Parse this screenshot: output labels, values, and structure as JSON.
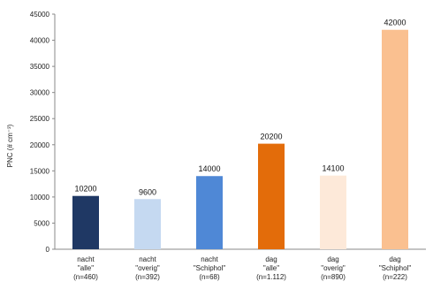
{
  "chart_data": {
    "type": "bar",
    "ylabel": "PNC (# cm⁻³)",
    "ylim": [
      0,
      45000
    ],
    "yticks": [
      0,
      5000,
      10000,
      15000,
      20000,
      25000,
      30000,
      35000,
      40000,
      45000
    ],
    "grid": false,
    "categories": [
      [
        "nacht",
        "\"alle\"",
        "(n=460)"
      ],
      [
        "nacht",
        "\"overig\"",
        "(n=392)"
      ],
      [
        "nacht",
        "\"Schiphol\"",
        "(n=68)"
      ],
      [
        "dag",
        "\"alle\"",
        "(n=1.112)"
      ],
      [
        "dag",
        "\"overig\"",
        "(n=890)"
      ],
      [
        "dag",
        "\"Schiphol\"",
        "(n=222)"
      ]
    ],
    "values": [
      10200,
      9600,
      14000,
      20200,
      14100,
      42000
    ],
    "data_labels": [
      "10200",
      "9600",
      "14000",
      "20200",
      "14100",
      "42000"
    ],
    "colors": [
      "#1f3864",
      "#c5d9f1",
      "#4f88d6",
      "#e36c0a",
      "#fde9d9",
      "#fac090"
    ]
  }
}
